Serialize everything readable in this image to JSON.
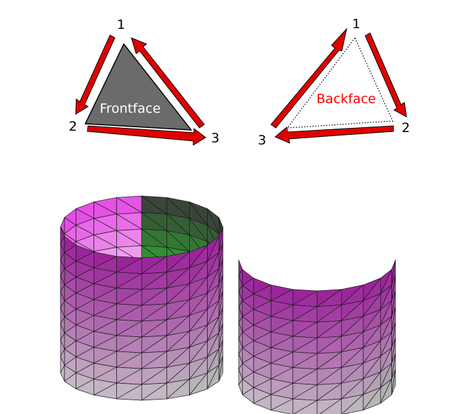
{
  "front_diagram": {
    "face_label": "Frontface",
    "face_label_color": "#ffffff",
    "face_fill": "#6b6b6b",
    "vertex_labels": [
      "1",
      "2",
      "3"
    ]
  },
  "back_diagram": {
    "face_label": "Backface",
    "face_label_color": "#ff0000",
    "face_outline": "dotted",
    "vertex_labels": [
      "1",
      "2",
      "3"
    ]
  },
  "arrow_color": "#e00000",
  "arrow_outline": "#000000",
  "mesh": {
    "full_cylinder": {
      "rows": 9,
      "segments": 20
    },
    "half_cylinder": {
      "rows": 8,
      "segments": 10
    },
    "colors": {
      "top_front": "#9a259a",
      "bottom_front": "#c8c8c8",
      "inner_left_top": "#e54ae5",
      "inner_left_bottom": "#f3c5f3",
      "inner_right_top": "#3a3a3a",
      "inner_right_bottom": "#2fa32f",
      "green_tint": "#4ea84e"
    }
  }
}
